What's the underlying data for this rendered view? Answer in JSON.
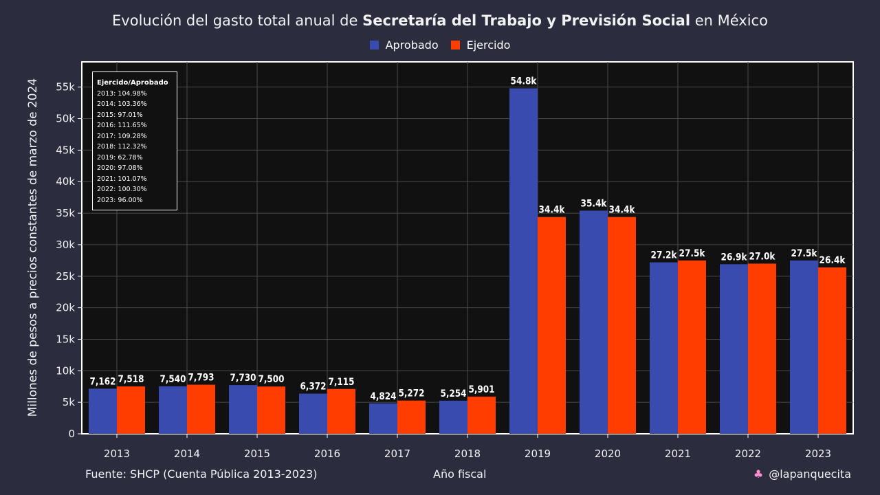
{
  "title": {
    "prefix": "Evolución del gasto total anual de ",
    "bold": "Secretaría del Trabajo y Previsión Social",
    "suffix": " en México"
  },
  "legend": [
    {
      "label": "Aprobado",
      "color": "#3a4bb0"
    },
    {
      "label": "Ejercido",
      "color": "#ff3d00"
    }
  ],
  "footer": {
    "source": "Fuente: SHCP (Cuenta Pública 2013-2023)",
    "xlabel": "Año fiscal",
    "handle": "@lapanquecita",
    "handle_icon": "cupcake-icon"
  },
  "ratio_box": {
    "title": "Ejercido/Aprobado",
    "lines": [
      "2013: 104.98%",
      "2014: 103.36%",
      "2015: 97.01%",
      "2016: 111.65%",
      "2017: 109.28%",
      "2018: 112.32%",
      "2019: 62.78%",
      "2020: 97.08%",
      "2021: 101.07%",
      "2022: 100.30%",
      "2023: 96.00%"
    ]
  },
  "chart_data": {
    "type": "bar",
    "title": "Evolución del gasto total anual de Secretaría del Trabajo y Previsión Social en México",
    "xlabel": "Año fiscal",
    "ylabel": "Millones de pesos a precios constantes de marzo de 2024",
    "categories": [
      "2013",
      "2014",
      "2015",
      "2016",
      "2017",
      "2018",
      "2019",
      "2020",
      "2021",
      "2022",
      "2023"
    ],
    "ylim": [
      0,
      59000
    ],
    "yticks": [
      0,
      5000,
      10000,
      15000,
      20000,
      25000,
      30000,
      35000,
      40000,
      45000,
      50000,
      55000
    ],
    "ytick_labels": [
      "0",
      "5k",
      "10k",
      "15k",
      "20k",
      "25k",
      "30k",
      "35k",
      "40k",
      "45k",
      "50k",
      "55k"
    ],
    "grid": true,
    "legend_position": "top-center",
    "series": [
      {
        "name": "Aprobado",
        "color": "#3a4bb0",
        "values": [
          7162,
          7540,
          7730,
          6372,
          4824,
          5254,
          54800,
          35400,
          27200,
          26900,
          27500
        ],
        "labels": [
          "7,162",
          "7,540",
          "7,730",
          "6,372",
          "4,824",
          "5,254",
          "54.8k",
          "35.4k",
          "27.2k",
          "26.9k",
          "27.5k"
        ]
      },
      {
        "name": "Ejercido",
        "color": "#ff3d00",
        "values": [
          7518,
          7793,
          7500,
          7115,
          5272,
          5901,
          34400,
          34400,
          27500,
          27000,
          26400
        ],
        "labels": [
          "7,518",
          "7,793",
          "7,500",
          "7,115",
          "5,272",
          "5,901",
          "34.4k",
          "34.4k",
          "27.5k",
          "27.0k",
          "26.4k"
        ]
      }
    ]
  }
}
